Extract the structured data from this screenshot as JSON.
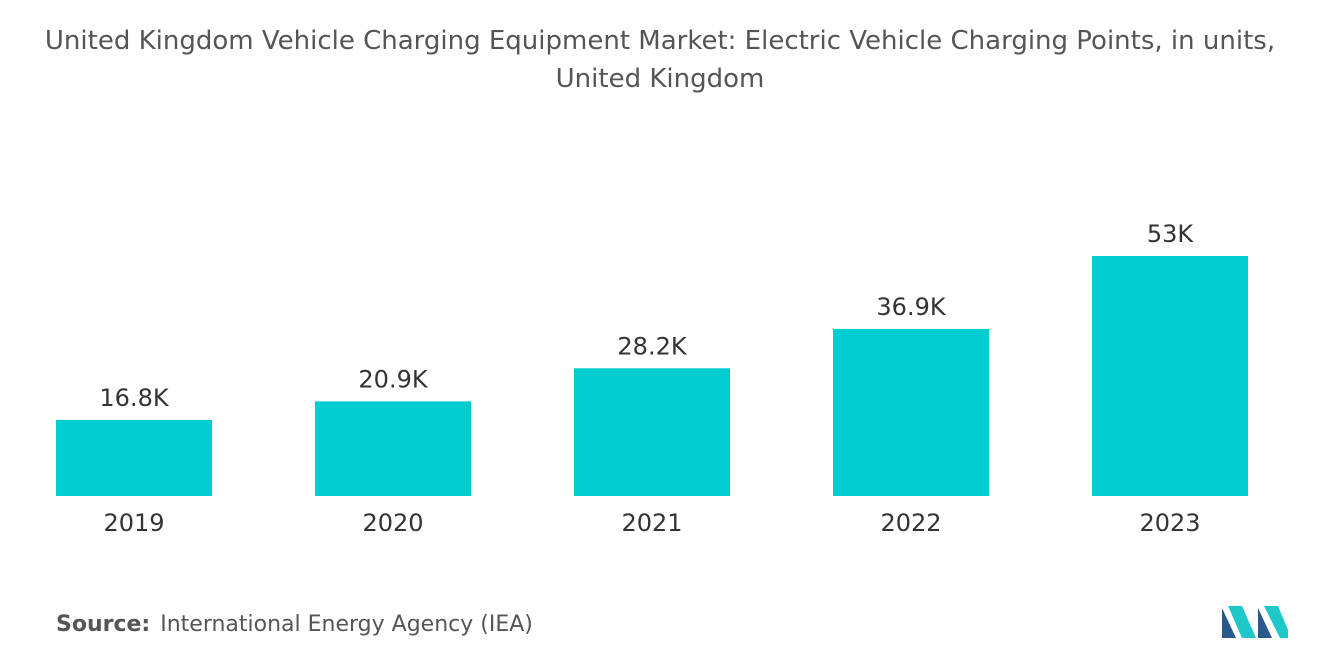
{
  "chart_data": {
    "type": "bar",
    "title": "United Kingdom Vehicle Charging Equipment Market: Electric Vehicle Charging Points, in units, United Kingdom",
    "categories": [
      "2019",
      "2020",
      "2021",
      "2022",
      "2023"
    ],
    "values": [
      16800,
      20900,
      28200,
      36900,
      53000
    ],
    "value_labels": [
      "16.8K",
      "20.9K",
      "28.2K",
      "36.9K",
      "53K"
    ],
    "color": "#00cdd0",
    "source_label": "Source:",
    "source": "International Energy Agency (IEA)"
  }
}
